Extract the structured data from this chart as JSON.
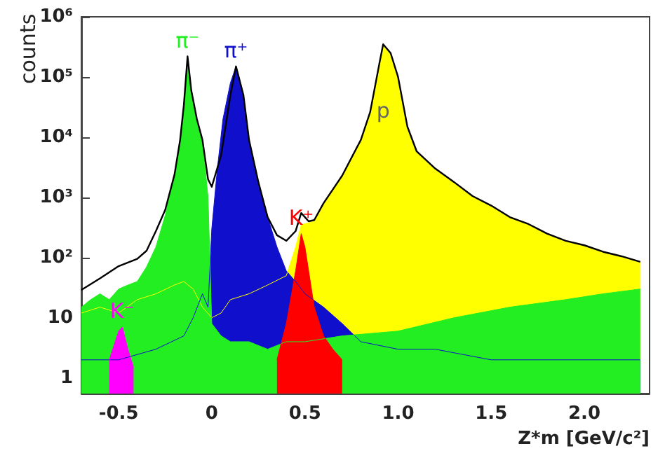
{
  "chart_data": {
    "type": "area",
    "xlabel": "Z*m [GeV/c²]",
    "ylabel": "counts",
    "log": "y",
    "grid": false,
    "legend": false,
    "marker": "none",
    "xlim": [
      -0.7,
      2.35
    ],
    "xticks": [
      -0.5,
      0,
      0.5,
      {
        "value": 1,
        "label": "1.0"
      },
      1.5,
      {
        "value": 2,
        "label": "2.0"
      }
    ],
    "ylim": [
      0.55,
      1000000
    ],
    "yticks": [
      1,
      10,
      {
        "value": 100,
        "label": "10²"
      },
      {
        "value": 1000,
        "label": "10³"
      },
      {
        "value": 10000,
        "label": "10⁴"
      },
      {
        "value": 100000,
        "label": "10⁵"
      },
      {
        "value": 1000000,
        "label": "10⁶"
      }
    ],
    "series": [
      {
        "name": "p",
        "color": "#ffff00",
        "x": [
          -0.7,
          -0.6,
          -0.5,
          -0.4,
          -0.3,
          -0.2,
          -0.15,
          -0.1,
          -0.05,
          0,
          0.05,
          0.1,
          0.2,
          0.3,
          0.4,
          0.45,
          0.48,
          0.52,
          0.55,
          0.6,
          0.7,
          0.8,
          0.85,
          0.9,
          0.92,
          0.96,
          1.0,
          1.05,
          1.1,
          1.2,
          1.3,
          1.4,
          1.5,
          1.6,
          1.7,
          1.8,
          1.9,
          2.0,
          2.1,
          2.2,
          2.3
        ],
        "values": [
          12,
          15,
          12,
          20,
          25,
          35,
          40,
          30,
          15,
          10,
          12,
          20,
          25,
          35,
          50,
          150,
          350,
          380,
          400,
          800,
          2300,
          9000,
          26000,
          170000,
          350000,
          250000,
          100000,
          15000,
          5800,
          3000,
          1800,
          1050,
          730,
          470,
          360,
          250,
          190,
          160,
          125,
          105,
          85
        ]
      },
      {
        "name": "π⁺",
        "color": "#1010cc",
        "x": [
          -0.7,
          -0.5,
          -0.3,
          -0.15,
          -0.1,
          -0.05,
          -0.02,
          0,
          0.03,
          0.06,
          0.1,
          0.13,
          0.17,
          0.2,
          0.25,
          0.3,
          0.35,
          0.4,
          0.45,
          0.5,
          0.6,
          0.7,
          0.8,
          1.0,
          1.2,
          1.5,
          2.0,
          2.3
        ],
        "values": [
          2,
          2,
          3,
          5,
          10,
          25,
          15,
          300,
          3000,
          20000,
          80000,
          150000,
          50000,
          9000,
          1800,
          470,
          150,
          60,
          40,
          25,
          15,
          8,
          4,
          3,
          3,
          2,
          2,
          2
        ]
      },
      {
        "name": "π⁻",
        "color": "#22ee22",
        "x": [
          -0.7,
          -0.65,
          -0.6,
          -0.55,
          -0.5,
          -0.45,
          -0.4,
          -0.35,
          -0.3,
          -0.25,
          -0.2,
          -0.17,
          -0.15,
          -0.13,
          -0.11,
          -0.08,
          -0.05,
          -0.02,
          0,
          0.05,
          0.1,
          0.2,
          0.3,
          0.4,
          0.5,
          0.7,
          1.0,
          1.3,
          1.6,
          1.9,
          2.1,
          2.3
        ],
        "values": [
          15,
          20,
          25,
          20,
          30,
          35,
          40,
          70,
          150,
          500,
          2400,
          9000,
          34000,
          220000,
          60000,
          20000,
          9000,
          1000,
          8,
          5,
          4,
          4,
          3,
          4,
          4,
          5,
          6,
          10,
          15,
          20,
          25,
          30
        ]
      },
      {
        "name": "K⁺",
        "color": "#ff0000",
        "x": [
          0.35,
          0.4,
          0.45,
          0.48,
          0.5,
          0.55,
          0.6,
          0.65,
          0.7
        ],
        "values": [
          2,
          8,
          60,
          250,
          150,
          15,
          5,
          3,
          2
        ]
      },
      {
        "name": "K⁻",
        "color": "#ff00ff",
        "x": [
          -0.55,
          -0.5,
          -0.48,
          -0.45,
          -0.42
        ],
        "values": [
          2,
          6,
          7,
          3,
          1.5
        ]
      },
      {
        "type": "line",
        "color": "#000000",
        "x": [
          -0.7,
          -0.6,
          -0.5,
          -0.4,
          -0.35,
          -0.3,
          -0.25,
          -0.2,
          -0.17,
          -0.15,
          -0.13,
          -0.11,
          -0.08,
          -0.05,
          -0.02,
          0,
          0.05,
          0.1,
          0.13,
          0.17,
          0.2,
          0.25,
          0.3,
          0.35,
          0.4,
          0.45,
          0.48,
          0.52,
          0.55,
          0.6,
          0.7,
          0.8,
          0.85,
          0.9,
          0.92,
          0.96,
          1.0,
          1.05,
          1.1,
          1.2,
          1.3,
          1.4,
          1.5,
          1.6,
          1.7,
          1.8,
          1.9,
          2.0,
          2.1,
          2.2,
          2.3
        ],
        "values": [
          29,
          45,
          72,
          95,
          130,
          275,
          620,
          2400,
          9000,
          34000,
          220000,
          60000,
          20000,
          9000,
          2000,
          1500,
          5000,
          50000,
          150000,
          50000,
          9000,
          1800,
          470,
          235,
          190,
          275,
          550,
          400,
          420,
          800,
          2300,
          9000,
          26000,
          170000,
          350000,
          250000,
          100000,
          15000,
          5800,
          3000,
          1800,
          1050,
          730,
          470,
          360,
          250,
          190,
          160,
          125,
          105,
          85
        ]
      }
    ]
  }
}
